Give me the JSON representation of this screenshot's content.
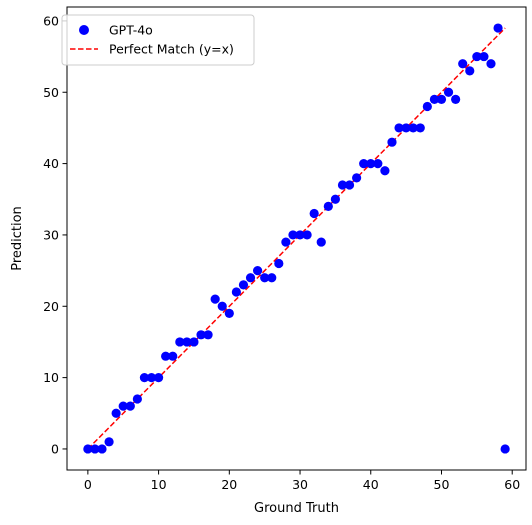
{
  "chart_data": {
    "type": "scatter",
    "xlabel": "Ground Truth",
    "ylabel": "Prediction",
    "xlim": [
      -2.95,
      61.95
    ],
    "ylim": [
      -2.95,
      61.95
    ],
    "xticks": [
      0,
      10,
      20,
      30,
      40,
      50,
      60
    ],
    "yticks": [
      0,
      10,
      20,
      30,
      40,
      50,
      60
    ],
    "grid": false,
    "legend_position": "top-left",
    "series": [
      {
        "name": "GPT-4o",
        "kind": "scatter",
        "color": "#0000ff",
        "x": [
          0,
          1,
          2,
          3,
          4,
          5,
          6,
          7,
          8,
          9,
          10,
          11,
          12,
          13,
          14,
          15,
          16,
          17,
          18,
          19,
          20,
          21,
          22,
          23,
          24,
          25,
          26,
          27,
          28,
          29,
          30,
          31,
          32,
          33,
          34,
          35,
          36,
          37,
          38,
          39,
          40,
          41,
          42,
          43,
          44,
          45,
          46,
          47,
          48,
          49,
          50,
          51,
          52,
          53,
          54,
          55,
          56,
          57,
          58,
          59
        ],
        "y": [
          0,
          0,
          0,
          1,
          5,
          6,
          6,
          7,
          10,
          10,
          10,
          13,
          13,
          15,
          15,
          15,
          16,
          16,
          21,
          20,
          19,
          22,
          23,
          24,
          25,
          24,
          24,
          26,
          29,
          30,
          30,
          30,
          33,
          29,
          34,
          35,
          37,
          37,
          38,
          40,
          40,
          40,
          39,
          43,
          45,
          45,
          45,
          45,
          48,
          49,
          49,
          50,
          49,
          54,
          53,
          55,
          55,
          54,
          59,
          0
        ]
      },
      {
        "name": "Perfect Match (y=x)",
        "kind": "line",
        "style": "dashed",
        "color": "#ff0000",
        "x": [
          0,
          59
        ],
        "y": [
          0,
          59
        ]
      }
    ]
  }
}
